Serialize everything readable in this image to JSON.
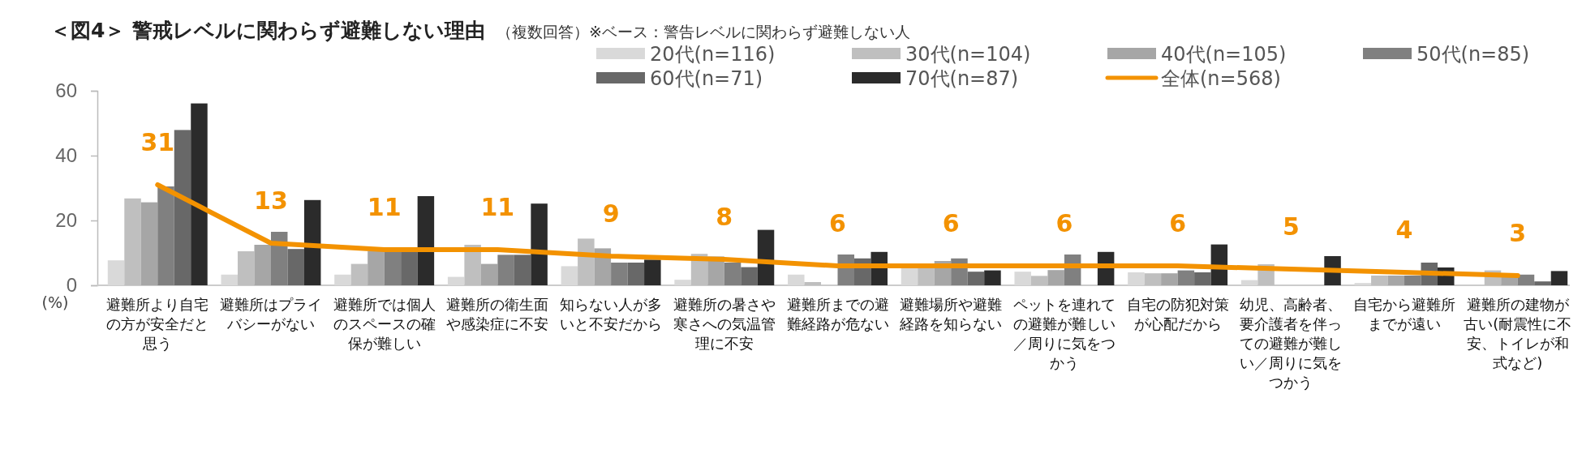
{
  "chart_data": {
    "type": "bar",
    "title": "＜図4＞ 警戒レベルに関わらず避難しない理由",
    "subtitle": "（複数回答）※ベース：警告レベルに関わらず避難しない人",
    "ylabel": "(%)",
    "categories": [
      "避難所より自宅の方が安全だと思う",
      "避難所はプライバシーがない",
      "避難所では個人のスペースの確保が難しい",
      "避難所の衛生面や感染症に不安",
      "知らない人が多いと不安だから",
      "避難所の暑さや寒さへの気温管理に不安",
      "避難所までの避難経路が危ない",
      "避難場所や避難経路を知らない",
      "ペットを連れての避難が難しい／周りに気をつかう",
      "自宅の防犯対策が心配だから",
      "幼児、高齢者、要介護者を伴っての避難が難しい／周りに気をつかう",
      "自宅から避難所までが遠い",
      "避難所の建物が古い(耐震性に不安、トイレが和式など)"
    ],
    "ylim": [
      0,
      60
    ],
    "yticks": [
      0,
      20,
      40,
      60
    ],
    "grid": false,
    "legend": "top right",
    "series": [
      {
        "name": "20代(n=116)",
        "color": "#d9d9d9",
        "values": [
          7.7,
          3.3,
          3.3,
          2.6,
          5.9,
          1.7,
          3.3,
          5.4,
          4.2,
          4.0,
          1.6,
          0.7,
          null
        ]
      },
      {
        "name": "30代(n=104)",
        "color": "#bfbfbf",
        "values": [
          26.8,
          10.5,
          6.6,
          12.5,
          14.4,
          9.7,
          1.0,
          5.9,
          2.9,
          3.7,
          6.5,
          3.0,
          4.6
        ]
      },
      {
        "name": "40代(n=105)",
        "color": "#a6a6a6",
        "values": [
          25.6,
          12.5,
          10.5,
          6.6,
          11.4,
          8.9,
          null,
          7.5,
          4.7,
          3.7,
          null,
          3.0,
          3.0
        ]
      },
      {
        "name": "50代(n=85)",
        "color": "#808080",
        "values": [
          30.5,
          16.5,
          11,
          9.4,
          7.0,
          7.0,
          9.5,
          8.3,
          9.5,
          4.6,
          null,
          3.0,
          3.3
        ]
      },
      {
        "name": "60代(n=71)",
        "color": "#686868",
        "values": [
          47.9,
          11.2,
          11,
          9.4,
          7.0,
          5.6,
          8.3,
          4.2,
          null,
          4.0,
          null,
          7.0,
          1.2
        ]
      },
      {
        "name": "70代(n=87)",
        "color": "#2b2b2b",
        "values": [
          56.1,
          26.3,
          27.5,
          25.2,
          7.9,
          17.1,
          10.3,
          4.6,
          10.3,
          12.6,
          9.0,
          5.5,
          4.4
        ]
      },
      {
        "name": "全体(n=568)",
        "type": "line",
        "color": "#f39200",
        "marker": "none",
        "values": [
          31,
          13,
          11,
          11,
          9,
          8,
          6,
          6,
          6,
          6,
          5,
          4,
          3
        ],
        "value_labels": [
          "31",
          "13",
          "11",
          "11",
          "9",
          "8",
          "6",
          "6",
          "6",
          "6",
          "5",
          "4",
          "3"
        ]
      }
    ]
  }
}
